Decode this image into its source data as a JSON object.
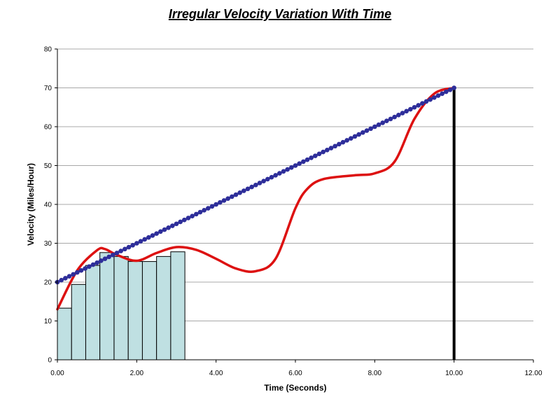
{
  "chart_data": {
    "type": "line",
    "title": "Irregular Velocity Variation With Time",
    "xlabel": "Time (Seconds)",
    "ylabel": "Velocity (Miles/Hour)",
    "xlim": [
      0,
      12
    ],
    "ylim": [
      0,
      80
    ],
    "x_ticks": [
      "0.00",
      "2.00",
      "4.00",
      "6.00",
      "8.00",
      "10.00",
      "12.00"
    ],
    "y_ticks": [
      "0",
      "10",
      "20",
      "30",
      "40",
      "50",
      "60",
      "70",
      "80"
    ],
    "grid": "horizontal",
    "colors": {
      "linear": "#2e2e9a",
      "curve": "#dd1111",
      "bars_fill": "#bfe0e2",
      "bars_stroke": "#000000",
      "vertical_line": "#000000",
      "grid": "#a8a8a8"
    },
    "linear_series": {
      "x_start": 0,
      "x_end": 10,
      "y_start": 20,
      "y_end": 70,
      "marker": "circle"
    },
    "curve_series": {
      "x": [
        0.0,
        0.5,
        1.0,
        1.2,
        1.5,
        2.0,
        2.5,
        3.0,
        3.5,
        4.0,
        4.5,
        5.0,
        5.5,
        6.0,
        6.3,
        6.7,
        7.5,
        8.0,
        8.5,
        9.0,
        9.5,
        10.0
      ],
      "y": [
        13,
        23,
        28.2,
        28.5,
        27,
        25.5,
        27.5,
        29,
        28.3,
        26,
        23.5,
        22.8,
        26,
        39,
        44,
        46.5,
        47.5,
        48,
        51,
        62,
        68.5,
        70
      ]
    },
    "bars": {
      "x_left": [
        0.0,
        0.357,
        0.714,
        1.071,
        1.429,
        1.786,
        2.143,
        2.5,
        2.857
      ],
      "width": 0.357,
      "values": [
        13.3,
        19.4,
        24.3,
        27.6,
        26.6,
        25.3,
        25.3,
        26.6,
        27.8
      ]
    },
    "vertical_line": {
      "x": 10,
      "y_from": 0,
      "y_to": 70
    }
  }
}
